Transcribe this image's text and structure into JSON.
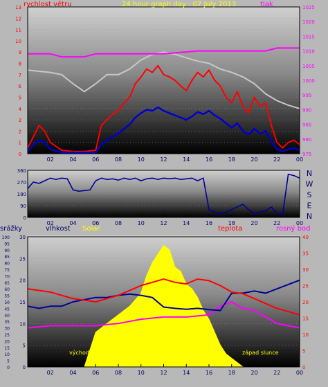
{
  "colors": {
    "wind": "#ff0000",
    "gust_avg": "#0000cc",
    "pressure": "#ff00ff",
    "gray_line": "#c8c8c8",
    "direction": "#000099",
    "humidity": "#000099",
    "solar": "#ffff00",
    "temperature": "#ff0000",
    "dew_point": "#ff00ff",
    "title": "#ffff00",
    "axis_dark": "#000066"
  },
  "chart_data": [
    {
      "type": "line",
      "title": "24 hour graph day : 07 July 2013",
      "left_label": "rychlost větru",
      "right_label": "tlak",
      "x_ticks": [
        "02",
        "04",
        "06",
        "08",
        "10",
        "12",
        "14",
        "16",
        "18",
        "20",
        "22",
        "00"
      ],
      "x_range": [
        0,
        24
      ],
      "y_left_ticks": [
        "0",
        "1",
        "2",
        "3",
        "4",
        "5",
        "6",
        "7",
        "8",
        "9",
        "10",
        "11",
        "12",
        "13"
      ],
      "y_left_range": [
        0,
        13
      ],
      "y_right_ticks": [
        "975",
        "980",
        "985",
        "990",
        "995",
        "1000",
        "1005",
        "1010",
        "1015",
        "1020",
        "1025"
      ],
      "y_right_range": [
        975,
        1025
      ],
      "series": [
        {
          "key": "pressure",
          "x": [
            0,
            2,
            3,
            5,
            6,
            8,
            12,
            15,
            17,
            19,
            21,
            22,
            24
          ],
          "y": [
            1009,
            1009,
            1008,
            1008,
            1009,
            1009,
            1009,
            1010,
            1010,
            1010,
            1010,
            1011,
            1011
          ]
        },
        {
          "key": "gray",
          "x": [
            0,
            2,
            3,
            4,
            5,
            6,
            7,
            8,
            9,
            10,
            11,
            12,
            13,
            14,
            15,
            16,
            17,
            18,
            19,
            20,
            21,
            22,
            23,
            24
          ],
          "y": [
            7.4,
            7.2,
            7.0,
            6.2,
            5.5,
            6.2,
            7.0,
            7.0,
            7.5,
            8.3,
            8.8,
            9.0,
            8.8,
            8.5,
            8.2,
            8.0,
            7.5,
            7.2,
            6.8,
            6.2,
            5.3,
            4.7,
            4.3,
            4.0
          ]
        },
        {
          "key": "wind",
          "x": [
            0,
            0.5,
            1,
            1.5,
            2,
            3,
            4,
            5,
            6,
            6.5,
            7,
            7.5,
            8,
            8.5,
            9,
            9.5,
            10,
            10.5,
            11,
            11.5,
            12,
            12.5,
            13,
            13.5,
            14,
            14.5,
            15,
            15.5,
            16,
            16.5,
            17,
            17.5,
            18,
            18.5,
            19,
            19.5,
            20,
            20.5,
            21,
            21.5,
            22,
            22.5,
            23,
            23.5,
            24
          ],
          "y": [
            0.5,
            1.5,
            2.5,
            2.0,
            1.0,
            0.3,
            0.2,
            0.2,
            0.3,
            2.5,
            3.0,
            3.5,
            3.8,
            4.5,
            5.0,
            6.2,
            6.8,
            7.5,
            7.2,
            7.8,
            7.0,
            6.8,
            6.5,
            6.0,
            5.6,
            6.5,
            7.2,
            6.8,
            7.4,
            6.5,
            6.0,
            5.0,
            4.5,
            5.5,
            4.2,
            3.6,
            5.0,
            4.2,
            4.5,
            2.5,
            1.0,
            0.5,
            1.0,
            1.2,
            0.8
          ]
        },
        {
          "key": "gust_avg",
          "x": [
            0,
            0.5,
            1,
            1.5,
            2,
            3,
            4,
            5,
            6,
            6.5,
            7,
            7.5,
            8,
            8.5,
            9,
            9.5,
            10,
            10.5,
            11,
            11.5,
            12,
            12.5,
            13,
            13.5,
            14,
            14.5,
            15,
            15.5,
            16,
            16.5,
            17,
            17.5,
            18,
            18.5,
            19,
            19.5,
            20,
            20.5,
            21,
            21.5,
            22,
            22.5,
            23,
            23.5,
            24
          ],
          "y": [
            0.2,
            0.8,
            1.2,
            1.0,
            0.4,
            0.1,
            0.1,
            0.1,
            0.1,
            0.8,
            1.2,
            1.5,
            1.8,
            2.2,
            2.6,
            3.2,
            3.6,
            3.9,
            3.8,
            4.1,
            3.8,
            3.6,
            3.4,
            3.2,
            3.0,
            3.3,
            3.7,
            3.5,
            3.8,
            3.4,
            3.1,
            2.7,
            2.3,
            2.7,
            2.0,
            1.7,
            2.2,
            1.8,
            2.0,
            1.1,
            0.4,
            0.2,
            0.4,
            0.5,
            0.3
          ]
        }
      ]
    },
    {
      "type": "scatter",
      "x_ticks": [
        "02",
        "04",
        "06",
        "08",
        "10",
        "12",
        "14",
        "16",
        "18",
        "20",
        "22",
        "00"
      ],
      "x_range": [
        0,
        24
      ],
      "y_ticks": [
        "0",
        "90",
        "180",
        "270",
        "360"
      ],
      "y_range": [
        0,
        360
      ],
      "compass_labels": [
        "N",
        "W",
        "S",
        "E",
        "N"
      ],
      "series": [
        {
          "key": "direction",
          "x": [
            0,
            0.5,
            1,
            1.5,
            2,
            2.5,
            3,
            3.5,
            4,
            4.5,
            5,
            5.5,
            6,
            6.5,
            7,
            7.5,
            8,
            8.5,
            9,
            9.5,
            10,
            10.5,
            11,
            11.5,
            12,
            12.5,
            13,
            13.5,
            14,
            14.5,
            15,
            15.5,
            16,
            16.5,
            17,
            17.5,
            18,
            18.5,
            19,
            19.5,
            20,
            20.5,
            21,
            21.5,
            22,
            22.5,
            23,
            23.5,
            24
          ],
          "y": [
            220,
            270,
            260,
            280,
            300,
            290,
            300,
            295,
            210,
            200,
            205,
            210,
            280,
            300,
            290,
            295,
            285,
            300,
            290,
            300,
            280,
            295,
            300,
            290,
            300,
            295,
            300,
            290,
            295,
            300,
            280,
            300,
            60,
            40,
            30,
            40,
            60,
            80,
            100,
            60,
            30,
            40,
            50,
            80,
            30,
            20,
            330,
            320,
            300
          ]
        }
      ]
    },
    {
      "type": "line",
      "labels": {
        "rain": "srážky",
        "humidity": "vlhkost",
        "solar": "Solar",
        "temperature": "teplota",
        "dew": "rosný bod",
        "sunrise": "východ s",
        "sunset": "západ slunce"
      },
      "x_ticks": [
        "02",
        "04",
        "06",
        "08",
        "10",
        "12",
        "14",
        "16",
        "18",
        "20",
        "22",
        "00"
      ],
      "x_range": [
        0,
        24
      ],
      "y_rain_ticks": [
        "0",
        "5",
        "10",
        "15",
        "20",
        "25",
        "30",
        "35",
        "40",
        "45",
        "50",
        "55",
        "60",
        "65",
        "70",
        "75",
        "80",
        "85",
        "90",
        "95",
        "100"
      ],
      "y_rain_range": [
        0,
        100
      ],
      "y_left_ticks": [
        "0",
        "5",
        "10",
        "15",
        "20",
        "25",
        "30"
      ],
      "y_left_range": [
        0,
        30
      ],
      "y_right_ticks": [
        "0",
        "5",
        "10",
        "15",
        "20",
        "25",
        "30",
        "35",
        "40"
      ],
      "y_right_range": [
        0,
        40
      ],
      "series": [
        {
          "key": "temperature",
          "x": [
            0,
            2,
            4,
            6,
            8,
            10,
            11,
            12,
            13,
            14,
            15,
            16,
            17,
            18,
            19,
            20,
            21,
            22,
            23,
            24
          ],
          "y": [
            24,
            23,
            21,
            20,
            22,
            25,
            26,
            27,
            26,
            25.5,
            27,
            26.5,
            25,
            23,
            22.5,
            21,
            19.5,
            18,
            17,
            16
          ]
        },
        {
          "key": "humidity",
          "x": [
            0,
            1,
            2,
            3,
            4,
            5,
            6,
            7,
            8,
            9,
            10,
            11,
            12,
            13,
            14,
            15,
            16,
            17,
            18,
            19,
            20,
            21,
            22,
            23,
            24
          ],
          "y": [
            14,
            13.5,
            14,
            14,
            15,
            15.5,
            16,
            16,
            16.5,
            16.8,
            16.5,
            16,
            13.8,
            13.5,
            13.3,
            13.5,
            13.2,
            13,
            17,
            17,
            17.5,
            17,
            18,
            19,
            20
          ]
        },
        {
          "key": "dew_point",
          "x": [
            0,
            2,
            4,
            6,
            8,
            10,
            12,
            14,
            16,
            17,
            18,
            19,
            20,
            21,
            22,
            23,
            24
          ],
          "y": [
            9,
            9.5,
            9.5,
            9.5,
            10,
            11,
            11.5,
            11.5,
            12,
            14,
            15,
            13.5,
            13,
            11.5,
            10,
            9.5,
            9
          ]
        },
        {
          "key": "solar",
          "x": [
            5,
            6,
            7,
            8,
            9,
            10,
            10.5,
            11,
            11.5,
            12,
            12.5,
            13,
            13.5,
            14,
            14.5,
            15,
            15.5,
            16,
            16.5,
            17,
            17.5,
            18,
            18.5,
            19
          ],
          "y": [
            0,
            8,
            10,
            12,
            14,
            17,
            21,
            24,
            26,
            28,
            27,
            23,
            22,
            19,
            18,
            16,
            13,
            11,
            8,
            5,
            3,
            2,
            1,
            0
          ]
        }
      ]
    }
  ]
}
